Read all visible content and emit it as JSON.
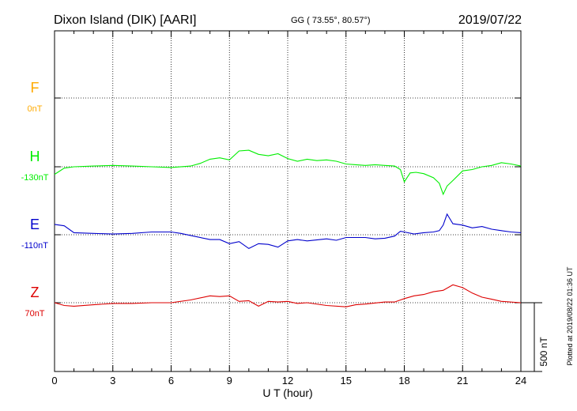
{
  "header": {
    "station": "Dixon Island (DIK)  [AARI]",
    "coords": "GG ( 73.55°,  80.57°)",
    "date": "2019/07/22"
  },
  "footer": {
    "plotted": "Plotted at 2019/08/22 01:36 UT"
  },
  "colors": {
    "F": "#ffaa00",
    "H": "#00ee00",
    "E": "#0000cc",
    "Z": "#dd0000",
    "axis": "#000000"
  },
  "chart_data": {
    "type": "line",
    "xlabel": "U T (hour)",
    "x_ticks": [
      "0",
      "3",
      "6",
      "9",
      "12",
      "15",
      "18",
      "21",
      "24"
    ],
    "xlim": [
      0,
      24
    ],
    "scale_bar": "500 nT",
    "grid": "dotted",
    "series": [
      {
        "name": "F",
        "baseline_label": "0nT",
        "color": "#ffaa00",
        "x": [],
        "values": []
      },
      {
        "name": "H",
        "baseline_label": "-130nT",
        "color": "#00ee00",
        "x": [
          0,
          0.5,
          1,
          2,
          3,
          4,
          5,
          6,
          7,
          7.5,
          8,
          8.5,
          9,
          9.5,
          10,
          10.5,
          11,
          11.5,
          12,
          12.5,
          13,
          13.5,
          14,
          14.5,
          15,
          15.5,
          16,
          16.5,
          17,
          17.5,
          17.8,
          18,
          18.3,
          18.6,
          19,
          19.5,
          19.8,
          20,
          20.2,
          20.5,
          21,
          21.5,
          22,
          22.5,
          23,
          23.5,
          24
        ],
        "values": [
          -55,
          -10,
          0,
          5,
          10,
          5,
          0,
          -5,
          5,
          25,
          55,
          65,
          50,
          115,
          120,
          90,
          80,
          95,
          60,
          40,
          55,
          45,
          50,
          40,
          20,
          15,
          10,
          15,
          10,
          5,
          -20,
          -110,
          -45,
          -40,
          -50,
          -80,
          -120,
          -200,
          -140,
          -100,
          -30,
          -20,
          0,
          10,
          30,
          20,
          5
        ]
      },
      {
        "name": "E",
        "baseline_label": "-110nT",
        "color": "#0000cc",
        "x": [
          0,
          0.5,
          1,
          2,
          3,
          4,
          5,
          6,
          6.5,
          7,
          8,
          8.5,
          9,
          9.5,
          10,
          10.5,
          11,
          11.5,
          12,
          12.5,
          13,
          14,
          14.5,
          15,
          16,
          16.5,
          17,
          17.5,
          17.8,
          18,
          18.5,
          19,
          19.5,
          19.8,
          20,
          20.2,
          20.5,
          21,
          21.5,
          22,
          22.5,
          23,
          23.5,
          24
        ],
        "values": [
          75,
          65,
          15,
          10,
          5,
          10,
          20,
          20,
          10,
          -5,
          -35,
          -35,
          -65,
          -50,
          -100,
          -65,
          -70,
          -90,
          -45,
          -35,
          -45,
          -30,
          -40,
          -20,
          -20,
          -30,
          -25,
          -10,
          25,
          20,
          5,
          15,
          20,
          30,
          70,
          150,
          80,
          70,
          50,
          60,
          40,
          30,
          20,
          15
        ]
      },
      {
        "name": "Z",
        "baseline_label": "70nT",
        "color": "#dd0000",
        "x": [
          0,
          0.5,
          1,
          2,
          3,
          4,
          5,
          6,
          7,
          8,
          8.5,
          9,
          9.5,
          10,
          10.5,
          11,
          11.5,
          12,
          12.5,
          13,
          14,
          15,
          15.5,
          16,
          17,
          17.5,
          18,
          18.5,
          19,
          19.5,
          20,
          20.5,
          21,
          21.5,
          22,
          22.5,
          23,
          24
        ],
        "values": [
          0,
          -20,
          -25,
          -15,
          -5,
          -5,
          0,
          0,
          20,
          50,
          45,
          50,
          10,
          15,
          -25,
          10,
          5,
          10,
          -5,
          0,
          -20,
          -30,
          -15,
          -10,
          5,
          5,
          30,
          50,
          60,
          80,
          90,
          130,
          110,
          70,
          40,
          25,
          10,
          0
        ]
      }
    ]
  }
}
